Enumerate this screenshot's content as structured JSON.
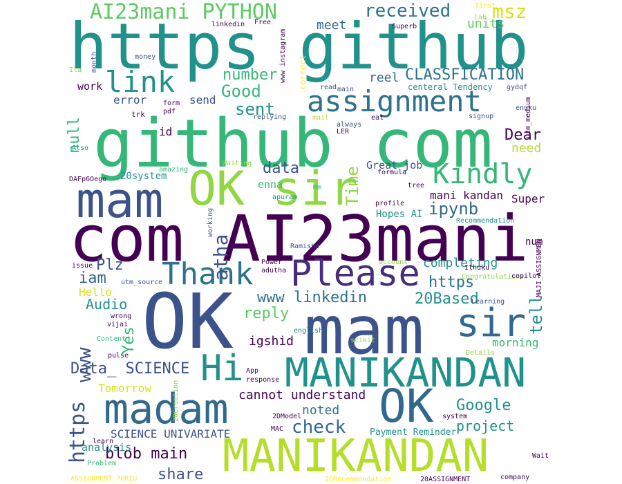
{
  "palette": {
    "dark_purple": "#440154",
    "indigo": "#3b528b",
    "navy_blue": "#31688e",
    "teal": "#21918c",
    "green": "#35b779",
    "lime": "#90d743",
    "yellow": "#fde725"
  },
  "words": [
    {
      "text": "https github",
      "color": "#21918c"
    },
    {
      "text": "github com",
      "color": "#35b779"
    },
    {
      "text": "com AI23mani",
      "color": "#440154"
    },
    {
      "text": "OK",
      "color": "#3b528b"
    },
    {
      "text": "mam",
      "color": "#3b528b"
    },
    {
      "text": "mam",
      "color": "#3b528b"
    },
    {
      "text": "OK sir",
      "color": "#90d743"
    },
    {
      "text": "MANIKANDAN",
      "color": "#21918c"
    },
    {
      "text": "MANIKANDAN",
      "color": "#b5de2b"
    },
    {
      "text": "madam",
      "color": "#31688e"
    },
    {
      "text": "OK",
      "color": "#31688e"
    },
    {
      "text": "Please",
      "color": "#472d7b"
    },
    {
      "text": "sir",
      "color": "#31688e"
    },
    {
      "text": "Hi",
      "color": "#21918c"
    },
    {
      "text": "Thank",
      "color": "#2c728e"
    },
    {
      "text": "assignment",
      "color": "#2c728e"
    },
    {
      "text": "Kindly",
      "color": "#35b779"
    },
    {
      "text": "link",
      "color": "#21918c"
    },
    {
      "text": "AI23mani PYTHON",
      "color": "#5ec962"
    },
    {
      "text": "received",
      "color": "#2c728e"
    },
    {
      "text": "msz",
      "color": "#d8e219"
    },
    {
      "text": "Good",
      "color": "#35b779"
    },
    {
      "text": "sent",
      "color": "#21918c"
    },
    {
      "text": "number",
      "color": "#35b779"
    },
    {
      "text": "CLASSFICATION",
      "color": "#2c728e"
    },
    {
      "text": "meet",
      "color": "#31688e"
    },
    {
      "text": "units",
      "color": "#5ec962"
    },
    {
      "text": "reel",
      "color": "#31688e"
    },
    {
      "text": "ipynb",
      "color": "#31688e"
    },
    {
      "text": "Dear",
      "color": "#440154"
    },
    {
      "text": "need",
      "color": "#b5de2b"
    },
    {
      "text": "data",
      "color": "#3b528b"
    },
    {
      "text": "Time",
      "color": "#90d743"
    },
    {
      "text": "Great job",
      "color": "#3b528b"
    },
    {
      "text": "mani kandan",
      "color": "#440154"
    },
    {
      "text": "Super",
      "color": "#440154"
    },
    {
      "text": "Hopes AI",
      "color": "#21918c"
    },
    {
      "text": "atha",
      "color": "#3b528b"
    },
    {
      "text": "Plz",
      "color": "#3b528b"
    },
    {
      "text": "iam",
      "color": "#31688e"
    },
    {
      "text": "Audio",
      "color": "#21918c"
    },
    {
      "text": "Hello",
      "color": "#d8e219"
    },
    {
      "text": "www linkedin",
      "color": "#2c728e"
    },
    {
      "text": "20Based",
      "color": "#21918c"
    },
    {
      "text": "completing",
      "color": "#21918c"
    },
    {
      "text": "https",
      "color": "#2c728e"
    },
    {
      "text": "tell",
      "color": "#21918c"
    },
    {
      "text": "reply",
      "color": "#5ec962"
    },
    {
      "text": "Yes",
      "color": "#35b779"
    },
    {
      "text": "www",
      "color": "#3b528b"
    },
    {
      "text": "https",
      "color": "#3b528b"
    },
    {
      "text": "Data_ SCIENCE",
      "color": "#3b528b"
    },
    {
      "text": "Tomorrow",
      "color": "#d8e219"
    },
    {
      "text": "igshid",
      "color": "#440154"
    },
    {
      "text": "morning",
      "color": "#35b779"
    },
    {
      "text": "cannot understand",
      "color": "#440154"
    },
    {
      "text": "noted",
      "color": "#2c728e"
    },
    {
      "text": "Google",
      "color": "#21918c"
    },
    {
      "text": "check",
      "color": "#31688e"
    },
    {
      "text": "project",
      "color": "#21918c"
    },
    {
      "text": "SCIENCE UNIVARIATE",
      "color": "#3b528b"
    },
    {
      "text": "blob main",
      "color": "#440154"
    },
    {
      "text": "share",
      "color": "#3b528b"
    },
    {
      "text": "analysis",
      "color": "#21918c"
    },
    {
      "text": "Payment Reminder",
      "color": "#21918c"
    },
    {
      "text": "work",
      "color": "#440154"
    },
    {
      "text": "null",
      "color": "#35b779"
    },
    {
      "text": "error",
      "color": "#3b528b"
    },
    {
      "text": "send",
      "color": "#3b528b"
    },
    {
      "text": "id",
      "color": "#440154"
    },
    {
      "text": "20system",
      "color": "#21918c"
    },
    {
      "text": "enna",
      "color": "#35b779"
    },
    {
      "text": "num",
      "color": "#440154"
    },
    {
      "text": "trk",
      "color": "#440154"
    },
    {
      "text": "centeral Tendency",
      "color": "#21918c"
    },
    {
      "text": "linkedin",
      "color": "#440154"
    },
    {
      "text": "Free",
      "color": "#440154"
    },
    {
      "text": "www instagram",
      "color": "#440154"
    },
    {
      "text": "correct",
      "color": "#fde725"
    },
    {
      "text": "Superb",
      "color": "#440154"
    },
    {
      "text": "first",
      "color": "#fde725"
    },
    {
      "text": "lab",
      "color": "#90d743"
    },
    {
      "text": "month",
      "color": "#3b528b"
    },
    {
      "text": "money",
      "color": "#3b528b"
    },
    {
      "text": "Ila",
      "color": "#90d743"
    },
    {
      "text": "read",
      "color": "#3b528b"
    },
    {
      "text": "main",
      "color": "#3b528b"
    },
    {
      "text": "gydqf",
      "color": "#3b528b"
    },
    {
      "text": "form",
      "color": "#440154"
    },
    {
      "text": "pdf",
      "color": "#440154"
    },
    {
      "text": "replying",
      "color": "#3b528b"
    },
    {
      "text": "mail",
      "color": "#b5de2b"
    },
    {
      "text": "eat",
      "color": "#440154"
    },
    {
      "text": "enuku",
      "color": "#3b528b"
    },
    {
      "text": "utm_medium",
      "color": "#440154"
    },
    {
      "text": "signup",
      "color": "#3b528b"
    },
    {
      "text": "always",
      "color": "#3b528b"
    },
    {
      "text": "LER",
      "color": "#440154"
    },
    {
      "text": "Also",
      "color": "#21918c"
    },
    {
      "text": "amazing",
      "color": "#35b779"
    },
    {
      "text": "Waiting",
      "color": "#90d743"
    },
    {
      "text": "formula",
      "color": "#440154"
    },
    {
      "text": "DAFp6Oego",
      "color": "#440154"
    },
    {
      "text": "Mm",
      "color": "#35b779"
    },
    {
      "text": "apuram",
      "color": "#21918c"
    },
    {
      "text": "tree",
      "color": "#440154"
    },
    {
      "text": "profile",
      "color": "#440154"
    },
    {
      "text": "Recommendation",
      "color": "#21918c"
    },
    {
      "text": "working",
      "color": "#3b528b"
    },
    {
      "text": "Ramishe",
      "color": "#3b528b"
    },
    {
      "text": "Power",
      "color": "#440154"
    },
    {
      "text": "adutha",
      "color": "#440154"
    },
    {
      "text": "account",
      "color": "#90d743"
    },
    {
      "text": "issue",
      "color": "#440154"
    },
    {
      "text": "utm_source",
      "color": "#3b528b"
    },
    {
      "text": "Ithuku",
      "color": "#440154"
    },
    {
      "text": "Congratulations",
      "color": "#90d743"
    },
    {
      "text": "copilot",
      "color": "#440154"
    },
    {
      "text": "MAJI_ASSIGNMEN",
      "color": "#440154"
    },
    {
      "text": "Learning",
      "color": "#3b528b"
    },
    {
      "text": "wrong",
      "color": "#440154"
    },
    {
      "text": "vijai",
      "color": "#440154"
    },
    {
      "text": "english",
      "color": "#21918c"
    },
    {
      "text": "Content",
      "color": "#35b779"
    },
    {
      "text": "pulse",
      "color": "#440154"
    },
    {
      "text": "scikit",
      "color": "#90d743"
    },
    {
      "text": "Details",
      "color": "#90d743"
    },
    {
      "text": "App",
      "color": "#440154"
    },
    {
      "text": "response",
      "color": "#440154"
    },
    {
      "text": "20Creation",
      "color": "#90d743"
    },
    {
      "text": "2DModel",
      "color": "#440154"
    },
    {
      "text": "system",
      "color": "#440154"
    },
    {
      "text": "MAC",
      "color": "#440154"
    },
    {
      "text": "learn",
      "color": "#440154"
    },
    {
      "text": "Problem",
      "color": "#35b779"
    },
    {
      "text": "Wait",
      "color": "#440154"
    },
    {
      "text": "ASSIGNMENT_7HRIU",
      "color": "#fde725"
    },
    {
      "text": "2ORecommendation",
      "color": "#fde725"
    },
    {
      "text": "20ASSIGNMENT",
      "color": "#440154"
    },
    {
      "text": "company",
      "color": "#440154"
    }
  ]
}
